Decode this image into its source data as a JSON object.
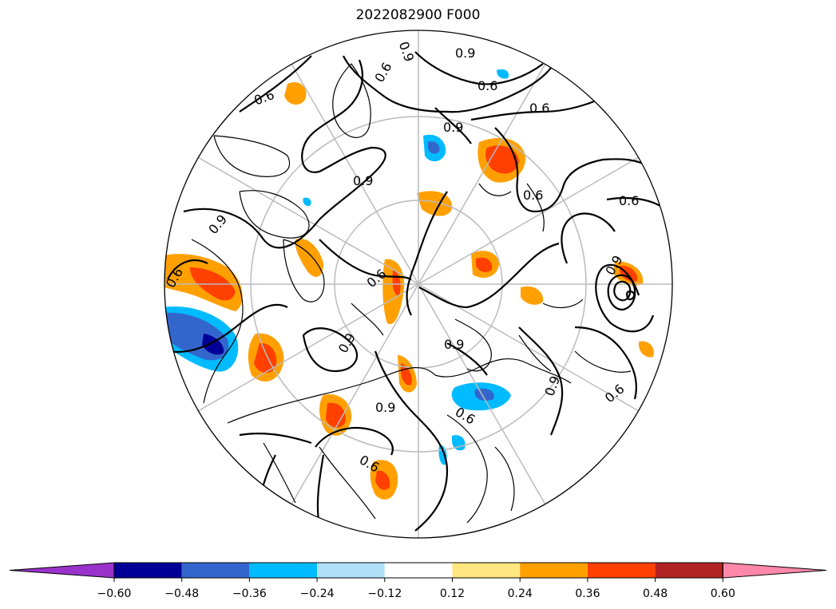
{
  "title": "2022082900 F000",
  "map": {
    "projection": "north polar stereographic",
    "contour_labels": [
      "0.9",
      "0.6",
      "0.9",
      "0.6",
      "0.6",
      "0.9",
      "0.6",
      "0.9",
      "0.6",
      "0.9",
      "0.6",
      "0.9",
      "0.9",
      "0.9",
      "0.9",
      "0.6",
      "0.6",
      "0.9",
      "0.6",
      "0.6",
      "0.6"
    ],
    "colors": {
      "coastline": "#000000",
      "gridline": "#bbbbbb",
      "contour": "#000000"
    }
  },
  "colorbar": {
    "levels": [
      "-0.60",
      "-0.48",
      "-0.36",
      "-0.24",
      "-0.12",
      "0.12",
      "0.24",
      "0.36",
      "0.48",
      "0.60"
    ],
    "colors": [
      "#9933cc",
      "#000099",
      "#3366cc",
      "#00bbff",
      "#b0e0f8",
      "#ffffff",
      "#ffe680",
      "#ffa000",
      "#ff4000",
      "#b22222",
      "#ff88aa"
    ],
    "extend": "both"
  }
}
